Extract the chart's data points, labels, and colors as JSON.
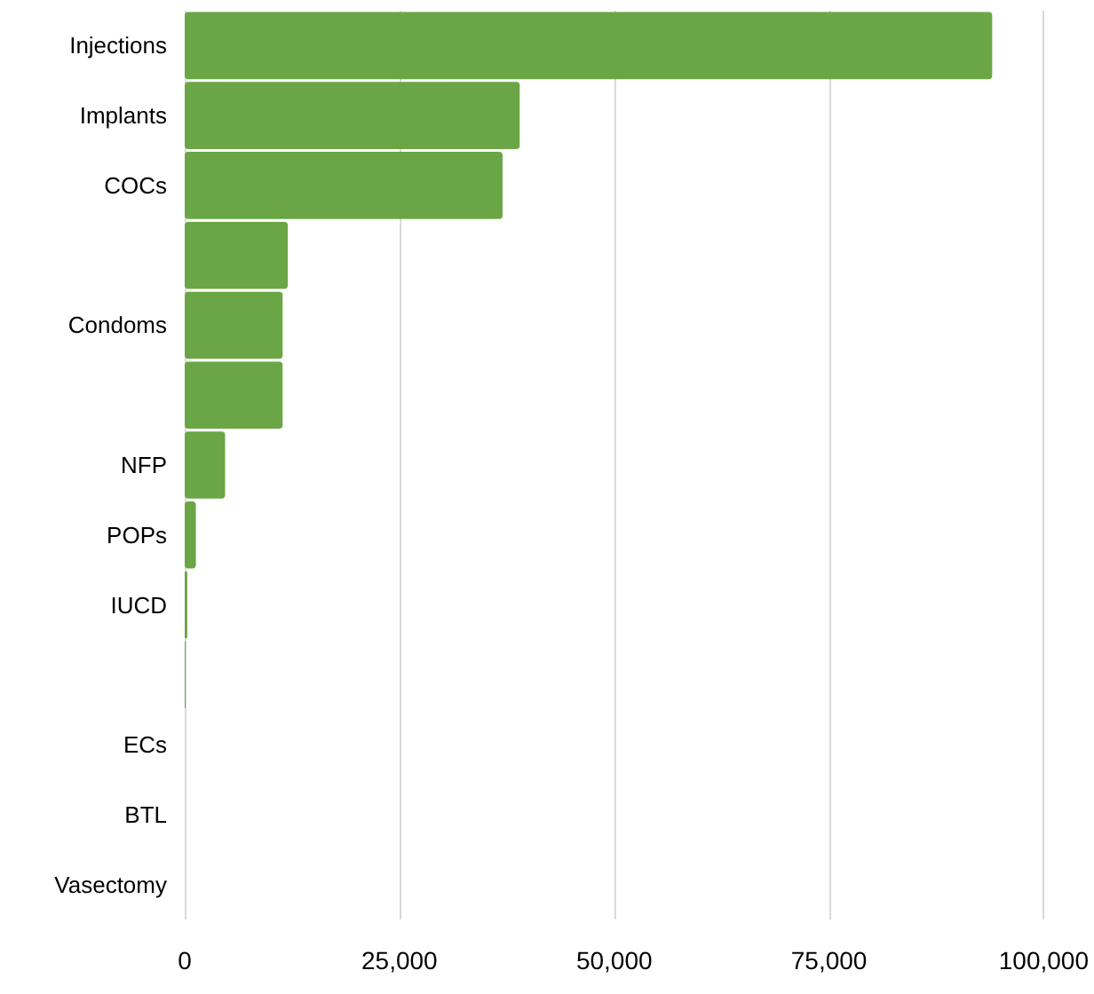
{
  "chart_data": {
    "type": "bar",
    "orientation": "horizontal",
    "categories": [
      "Injections",
      "Implants",
      "COCs",
      null,
      "Condoms",
      null,
      "NFP",
      "POPs",
      "IUCD",
      null,
      "ECs",
      "BTL",
      "Vasectomy"
    ],
    "values": [
      94000,
      39000,
      37000,
      12000,
      11400,
      11400,
      4700,
      1300,
      300,
      100,
      0,
      0,
      0
    ],
    "color": "#6aa645",
    "xlim": [
      0,
      100000
    ],
    "xticks": [
      0,
      {
        "value": 25000,
        "label": "25,000"
      },
      {
        "value": 50000,
        "label": "50,000"
      },
      {
        "value": 75000,
        "label": "75,000"
      },
      {
        "value": 100000,
        "label": "100,000"
      }
    ],
    "grid": "x"
  }
}
